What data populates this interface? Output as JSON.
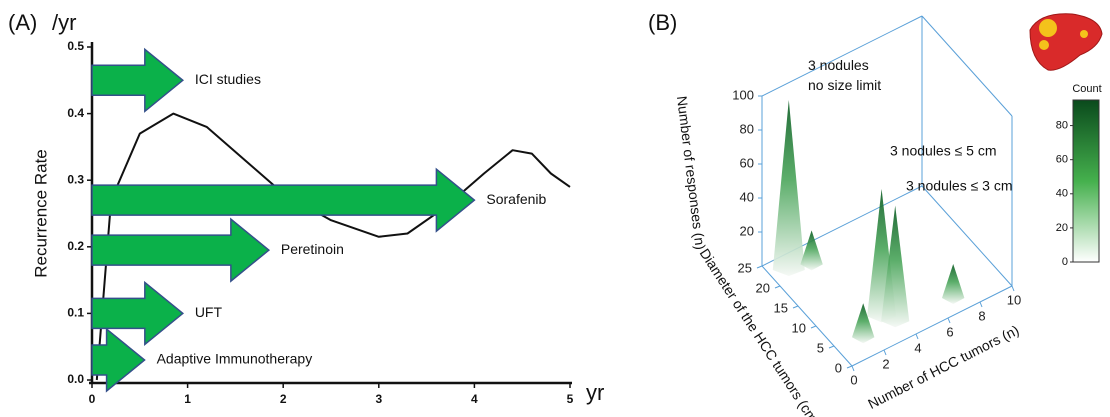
{
  "chart_data": [
    {
      "type": "line-arrows",
      "panel": "(A)",
      "ylabel": "Recurrence Rate",
      "yunit": "/yr",
      "xunit": "yr",
      "x": [
        0.05,
        0.2,
        0.5,
        0.85,
        1.2,
        1.6,
        2.0,
        2.5,
        3.0,
        3.3,
        3.7,
        4.1,
        4.4,
        4.6,
        4.8,
        5.0
      ],
      "values": [
        0.0,
        0.27,
        0.37,
        0.4,
        0.38,
        0.33,
        0.28,
        0.24,
        0.215,
        0.22,
        0.26,
        0.31,
        0.345,
        0.34,
        0.31,
        0.29
      ],
      "color": "#111111",
      "xlim": [
        0,
        5
      ],
      "ylim": [
        0,
        0.5
      ],
      "xticks": [
        0,
        1,
        2,
        3,
        4,
        5
      ],
      "yticks": [
        {
          "value": 0,
          "label": "0.0"
        },
        0.1,
        0.2,
        0.3,
        0.4,
        0.5
      ],
      "arrows": [
        {
          "label": "ICI studies",
          "y": 0.45,
          "x_end": 0.95
        },
        {
          "label": "Sorafenib",
          "y": 0.27,
          "x_end": 4.0
        },
        {
          "label": "Peretinoin",
          "y": 0.195,
          "x_end": 1.85
        },
        {
          "label": "UFT",
          "y": 0.1,
          "x_end": 0.95
        },
        {
          "label": "Adaptive Immunotherapy",
          "y": 0.03,
          "x_end": 0.55
        }
      ],
      "arrow_color": "#0bb14a"
    },
    {
      "type": "surface3d",
      "panel": "(B)",
      "zlabel": "Number of responses (n)",
      "ylabel": "Diameter of the HCC tumors (cm)",
      "xlabel": "Number of HCC tumors (n)",
      "peaks": {
        "x": [
          1,
          2.2,
          3.2,
          3.6,
          1.6,
          7
        ],
        "y": [
          22,
          21,
          6,
          4,
          4,
          3
        ],
        "z": [
          100,
          20,
          75,
          68,
          20,
          20
        ]
      },
      "xlim": [
        0,
        10
      ],
      "ylim": [
        0,
        25
      ],
      "zlim": [
        0,
        100
      ],
      "xticks": [
        0,
        2,
        4,
        6,
        8,
        10
      ],
      "yticks": [
        0,
        5,
        10,
        15,
        20,
        25
      ],
      "zticks": [
        20,
        40,
        60,
        80,
        100
      ],
      "annotations": [
        "3 nodules\nno size limit",
        "3 nodules ≤ 5 cm",
        "3 nodules ≤ 3 cm"
      ],
      "colorbar": {
        "title": "Count",
        "lim": [
          0,
          95
        ],
        "ticks": [
          0,
          20,
          40,
          60,
          80
        ]
      },
      "color": "#0a5c22"
    }
  ]
}
